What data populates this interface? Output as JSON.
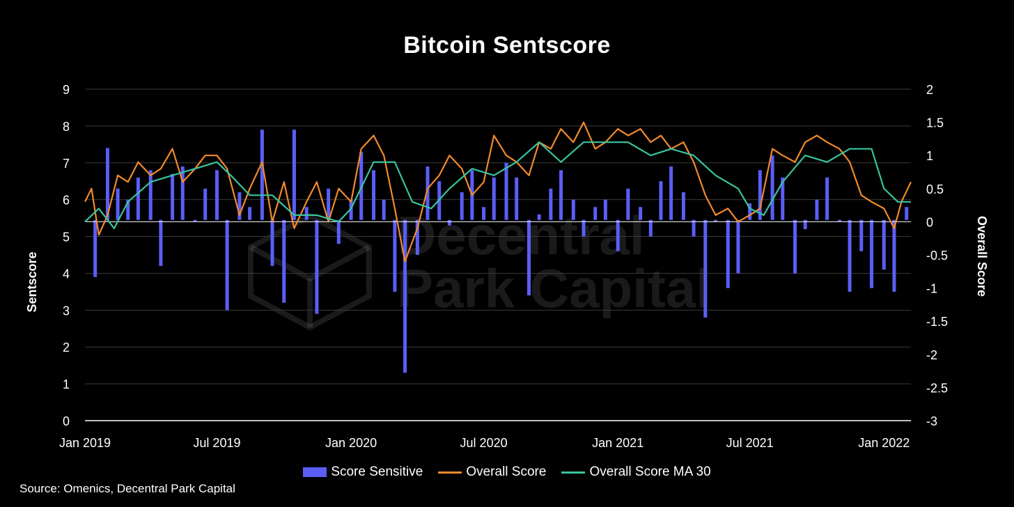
{
  "title": "Bitcoin Sentscore",
  "source": "Source: Omenics, Decentral Park Capital",
  "watermark": {
    "line1": "Decentral",
    "line2": "Park Capital"
  },
  "chart_data": {
    "type": "bar+line",
    "title": "Bitcoin Sentscore",
    "x_ticks": [
      "Jan 2019",
      "Jul 2019",
      "Jan 2020",
      "Jul 2020",
      "Jan 2021",
      "Jul 2021",
      "Jan 2022"
    ],
    "xlim": [
      "2019-01-01",
      "2022-02-07"
    ],
    "left_axis": {
      "label": "Sentscore",
      "min": 0,
      "max": 9,
      "ticks": [
        "0",
        "1",
        "2",
        "3",
        "4",
        "5",
        "6",
        "7",
        "8",
        "9"
      ]
    },
    "right_axis": {
      "label": "Overall Score",
      "min": -3,
      "max": 2,
      "ticks": [
        "-3",
        "-2.5",
        "-2",
        "-1.5",
        "-1",
        "-0.5",
        "0",
        "0.5",
        "1",
        "1.5",
        "2"
      ]
    },
    "grid": true,
    "legend_position": "bottom",
    "colors": {
      "bars": "#5b5ef5",
      "overall": "#f28a2e",
      "ma30": "#38c4a0",
      "grid": "#3a3a3a",
      "baseline": "#ffffff"
    },
    "series": [
      {
        "name": "Score Sensitive",
        "type": "bar",
        "axis": "left",
        "baseline": 5.45,
        "x": [
          "2019-01-15",
          "2019-02-01",
          "2019-02-15",
          "2019-03-01",
          "2019-03-15",
          "2019-04-01",
          "2019-04-15",
          "2019-05-01",
          "2019-05-15",
          "2019-06-01",
          "2019-06-15",
          "2019-07-01",
          "2019-07-15",
          "2019-08-01",
          "2019-08-15",
          "2019-09-01",
          "2019-09-15",
          "2019-10-01",
          "2019-10-15",
          "2019-11-01",
          "2019-11-15",
          "2019-12-01",
          "2019-12-15",
          "2020-01-01",
          "2020-01-15",
          "2020-02-01",
          "2020-02-15",
          "2020-03-01",
          "2020-03-15",
          "2020-04-01",
          "2020-04-15",
          "2020-05-01",
          "2020-05-15",
          "2020-06-01",
          "2020-06-15",
          "2020-07-01",
          "2020-07-15",
          "2020-08-01",
          "2020-08-15",
          "2020-09-01",
          "2020-09-15",
          "2020-10-01",
          "2020-10-15",
          "2020-11-01",
          "2020-11-15",
          "2020-12-01",
          "2020-12-15",
          "2021-01-01",
          "2021-01-15",
          "2021-02-01",
          "2021-02-15",
          "2021-03-01",
          "2021-03-15",
          "2021-04-01",
          "2021-04-15",
          "2021-05-01",
          "2021-05-15",
          "2021-06-01",
          "2021-06-15",
          "2021-07-01",
          "2021-07-15",
          "2021-08-01",
          "2021-08-15",
          "2021-09-01",
          "2021-09-15",
          "2021-10-01",
          "2021-10-15",
          "2021-11-01",
          "2021-11-15",
          "2021-12-01",
          "2021-12-15",
          "2022-01-01",
          "2022-01-15",
          "2022-02-01"
        ],
        "values": [
          3.9,
          7.4,
          6.3,
          6.0,
          6.6,
          6.8,
          4.2,
          6.7,
          6.9,
          5.4,
          6.3,
          6.8,
          3.0,
          6.2,
          5.8,
          7.9,
          4.2,
          3.2,
          7.9,
          5.8,
          2.9,
          6.3,
          4.8,
          6.0,
          7.3,
          6.8,
          6.0,
          3.5,
          1.3,
          4.5,
          6.9,
          6.5,
          5.3,
          6.2,
          6.8,
          5.8,
          6.6,
          7.0,
          6.6,
          3.4,
          5.6,
          6.3,
          6.8,
          6.0,
          5.0,
          5.8,
          6.0,
          4.6,
          6.3,
          5.8,
          5.0,
          6.5,
          6.9,
          6.2,
          5.0,
          2.8,
          5.4,
          3.6,
          4.0,
          5.9,
          6.8,
          7.2,
          6.6,
          4.0,
          5.2,
          6.0,
          6.6,
          5.4,
          3.5,
          4.6,
          3.6,
          4.1,
          3.5,
          5.8
        ]
      },
      {
        "name": "Overall Score",
        "type": "line",
        "axis": "right",
        "x": [
          "2019-01-01",
          "2019-01-10",
          "2019-01-20",
          "2019-02-01",
          "2019-02-15",
          "2019-03-01",
          "2019-03-15",
          "2019-04-01",
          "2019-04-15",
          "2019-05-01",
          "2019-05-15",
          "2019-06-01",
          "2019-06-15",
          "2019-07-01",
          "2019-07-15",
          "2019-08-01",
          "2019-08-15",
          "2019-09-01",
          "2019-09-15",
          "2019-10-01",
          "2019-10-15",
          "2019-11-01",
          "2019-11-15",
          "2019-12-01",
          "2019-12-15",
          "2020-01-01",
          "2020-01-15",
          "2020-02-01",
          "2020-02-15",
          "2020-03-01",
          "2020-03-15",
          "2020-04-01",
          "2020-04-15",
          "2020-05-01",
          "2020-05-15",
          "2020-06-01",
          "2020-06-15",
          "2020-07-01",
          "2020-07-15",
          "2020-08-01",
          "2020-08-15",
          "2020-09-01",
          "2020-09-15",
          "2020-10-01",
          "2020-10-15",
          "2020-11-01",
          "2020-11-15",
          "2020-12-01",
          "2020-12-15",
          "2021-01-01",
          "2021-01-15",
          "2021-02-01",
          "2021-02-15",
          "2021-03-01",
          "2021-03-15",
          "2021-04-01",
          "2021-04-15",
          "2021-05-01",
          "2021-05-15",
          "2021-06-01",
          "2021-06-15",
          "2021-07-01",
          "2021-07-15",
          "2021-08-01",
          "2021-08-15",
          "2021-09-01",
          "2021-09-15",
          "2021-10-01",
          "2021-10-15",
          "2021-11-01",
          "2021-11-15",
          "2021-12-01",
          "2021-12-15",
          "2022-01-01",
          "2022-01-15",
          "2022-01-25",
          "2022-02-07"
        ],
        "values": [
          0.3,
          0.5,
          -0.2,
          0.1,
          0.7,
          0.6,
          0.9,
          0.7,
          0.8,
          1.1,
          0.6,
          0.8,
          1.0,
          1.0,
          0.8,
          0.1,
          0.5,
          0.9,
          0.0,
          0.6,
          -0.1,
          0.3,
          0.6,
          0.0,
          0.5,
          0.3,
          1.1,
          1.3,
          1.0,
          0.2,
          -0.6,
          -0.1,
          0.5,
          0.7,
          1.0,
          0.8,
          0.4,
          0.6,
          1.3,
          1.0,
          0.9,
          0.7,
          1.2,
          1.1,
          1.4,
          1.2,
          1.5,
          1.1,
          1.2,
          1.4,
          1.3,
          1.4,
          1.2,
          1.3,
          1.1,
          1.2,
          0.9,
          0.4,
          0.1,
          0.2,
          0.0,
          0.1,
          0.2,
          1.1,
          1.0,
          0.9,
          1.2,
          1.3,
          1.2,
          1.1,
          0.9,
          0.4,
          0.3,
          0.2,
          -0.1,
          0.3,
          0.6
        ]
      },
      {
        "name": "Overall Score MA 30",
        "type": "line",
        "axis": "right",
        "x": [
          "2019-01-01",
          "2019-01-20",
          "2019-02-10",
          "2019-03-01",
          "2019-04-01",
          "2019-05-01",
          "2019-06-01",
          "2019-07-01",
          "2019-07-20",
          "2019-08-15",
          "2019-09-15",
          "2019-10-15",
          "2019-11-15",
          "2019-12-15",
          "2020-01-01",
          "2020-02-01",
          "2020-03-01",
          "2020-03-25",
          "2020-04-20",
          "2020-05-15",
          "2020-06-15",
          "2020-07-15",
          "2020-08-15",
          "2020-09-15",
          "2020-10-15",
          "2020-11-15",
          "2020-12-15",
          "2021-01-15",
          "2021-02-15",
          "2021-03-15",
          "2021-04-15",
          "2021-05-15",
          "2021-06-15",
          "2021-07-01",
          "2021-07-20",
          "2021-08-15",
          "2021-09-15",
          "2021-10-15",
          "2021-11-15",
          "2021-12-15",
          "2022-01-01",
          "2022-01-20",
          "2022-02-07"
        ],
        "values": [
          0.0,
          0.2,
          -0.1,
          0.3,
          0.6,
          0.7,
          0.8,
          0.9,
          0.7,
          0.4,
          0.4,
          0.1,
          0.1,
          0.0,
          0.2,
          0.9,
          0.9,
          0.3,
          0.2,
          0.5,
          0.8,
          0.7,
          0.9,
          1.2,
          0.9,
          1.2,
          1.2,
          1.2,
          1.0,
          1.1,
          1.0,
          0.7,
          0.5,
          0.2,
          0.1,
          0.6,
          1.0,
          0.9,
          1.1,
          1.1,
          0.5,
          0.3,
          0.3
        ]
      }
    ]
  }
}
